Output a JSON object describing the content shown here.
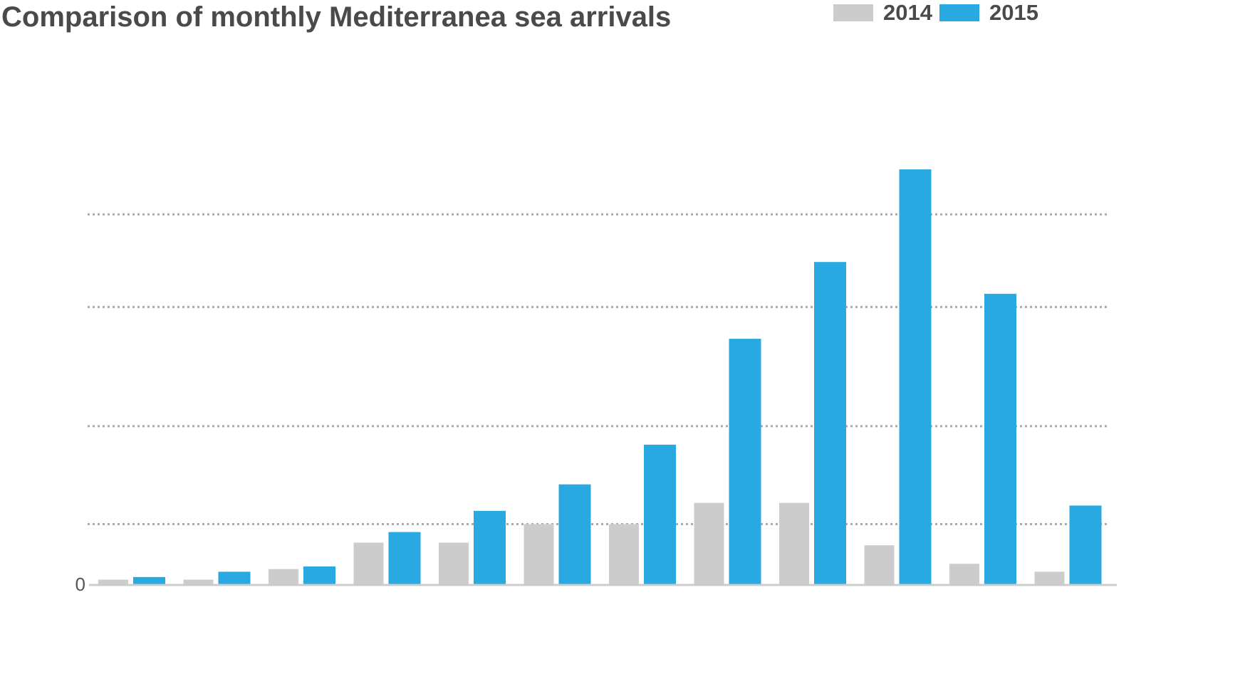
{
  "chart_data": {
    "type": "bar",
    "title": "Comparison of monthly Mediterranea sea arrivals",
    "categories": [
      "",
      "",
      "",
      "",
      "",
      "",
      "",
      "",
      "",
      "",
      "",
      ""
    ],
    "series": [
      {
        "name": "2014",
        "color": "#cccccc",
        "values": [
          1.0,
          1.0,
          3.0,
          8.0,
          8.0,
          11.5,
          11.5,
          15.5,
          15.5,
          7.5,
          4.0,
          2.5
        ]
      },
      {
        "name": "2015",
        "color": "#29a9e1",
        "values": [
          1.5,
          2.5,
          3.5,
          10.0,
          14.0,
          19.0,
          26.5,
          46.5,
          61.0,
          78.5,
          55.0,
          15.0
        ]
      }
    ],
    "y_tick_labels": [
      "0"
    ],
    "gridlines": [
      11.5,
      30,
      52.5,
      70
    ],
    "ylim": [
      0,
      78.5
    ],
    "xlabel": "",
    "ylabel": "",
    "grid": true,
    "gridline_style": "dotted",
    "legend_position": "top-right"
  }
}
